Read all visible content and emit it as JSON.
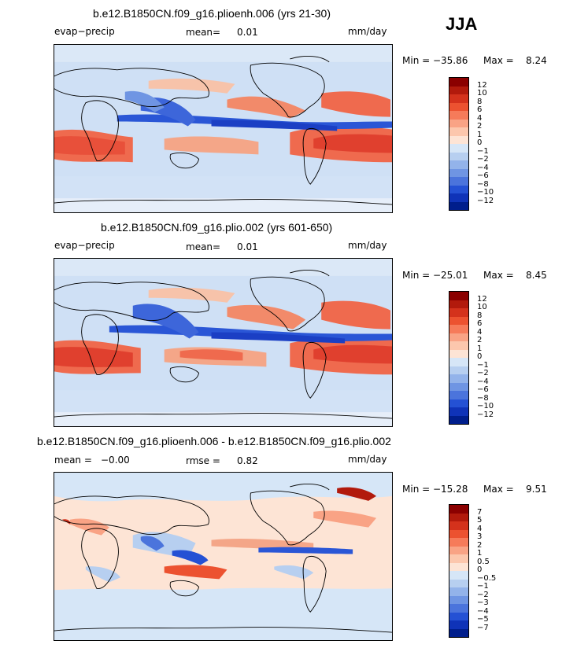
{
  "season": "JJA",
  "palette": {
    "ocean_base": "#cfe0f5",
    "land_line": "#000000",
    "dry": "#f2654a",
    "wet": "#2a56d6"
  },
  "panels": [
    {
      "title": "b.e12.B1850CN.f09_g16.plioenh.006 (yrs 21-30)",
      "left_label": "evap−precip",
      "mid_label": "mean=",
      "mid_value": "0.01",
      "units": "mm/day",
      "min_label": "Min = −35.86",
      "max_label": "Max =",
      "max_value": "8.24",
      "colorbar": {
        "labels": [
          "12",
          "10",
          "8",
          "6",
          "4",
          "2",
          "1",
          "0",
          "−1",
          "−2",
          "−4",
          "−6",
          "−8",
          "−10",
          "−12"
        ],
        "colors": [
          "#8b0000",
          "#b21a0c",
          "#d4321c",
          "#ec5230",
          "#f67b5a",
          "#f9a385",
          "#fcc7ad",
          "#fde4d5",
          "#d6e6f7",
          "#b7cff0",
          "#93b3ea",
          "#6f95e3",
          "#4b74dc",
          "#2451d4",
          "#0f33b8",
          "#001e8c"
        ]
      }
    },
    {
      "title": "b.e12.B1850CN.f09_g16.plio.002 (yrs 601-650)",
      "left_label": "evap−precip",
      "mid_label": "mean=",
      "mid_value": "0.01",
      "units": "mm/day",
      "min_label": "Min = −25.01",
      "max_label": "Max =",
      "max_value": "8.45",
      "colorbar": {
        "labels": [
          "12",
          "10",
          "8",
          "6",
          "4",
          "2",
          "1",
          "0",
          "−1",
          "−2",
          "−4",
          "−6",
          "−8",
          "−10",
          "−12"
        ],
        "colors": [
          "#8b0000",
          "#b21a0c",
          "#d4321c",
          "#ec5230",
          "#f67b5a",
          "#f9a385",
          "#fcc7ad",
          "#fde4d5",
          "#d6e6f7",
          "#b7cff0",
          "#93b3ea",
          "#6f95e3",
          "#4b74dc",
          "#2451d4",
          "#0f33b8",
          "#001e8c"
        ]
      }
    },
    {
      "title": "b.e12.B1850CN.f09_g16.plioenh.006 - b.e12.B1850CN.f09_g16.plio.002",
      "left_label": "mean =",
      "left_value": "−0.00",
      "mid_label": "rmse =",
      "mid_value": "0.82",
      "units": "mm/day",
      "min_label": "Min = −15.28",
      "max_label": "Max =",
      "max_value": "9.51",
      "colorbar": {
        "labels": [
          "7",
          "5",
          "4",
          "3",
          "2",
          "1",
          "0.5",
          "0",
          "−0.5",
          "−1",
          "−2",
          "−3",
          "−4",
          "−5",
          "−7"
        ],
        "colors": [
          "#8b0000",
          "#b21a0c",
          "#d4321c",
          "#ec5230",
          "#f67b5a",
          "#f9a385",
          "#fcc7ad",
          "#fde4d5",
          "#d6e6f7",
          "#b7cff0",
          "#93b3ea",
          "#6f95e3",
          "#4b74dc",
          "#2451d4",
          "#0f33b8",
          "#001e8c"
        ]
      }
    }
  ]
}
